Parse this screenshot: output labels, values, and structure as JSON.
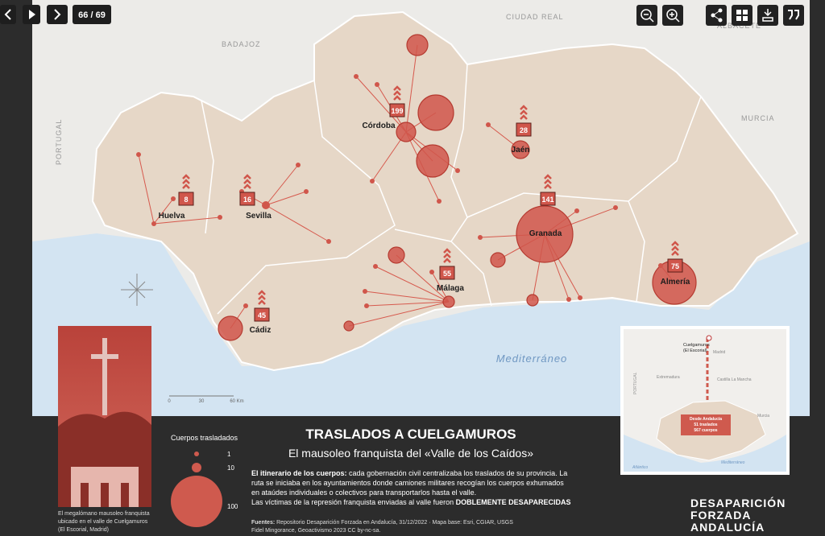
{
  "nav": {
    "counter": "66 / 69"
  },
  "map": {
    "places": [
      "BADAJOZ",
      "CIUDAD REAL",
      "ALBACETE",
      "MURCIA",
      "PORTUGAL"
    ],
    "provinces": [
      {
        "name": "Huelva",
        "count": 8
      },
      {
        "name": "Sevilla",
        "count": 16
      },
      {
        "name": "Córdoba",
        "count": 199
      },
      {
        "name": "Jaén",
        "count": 28
      },
      {
        "name": "Granada",
        "count": 141
      },
      {
        "name": "Almería",
        "count": 75
      },
      {
        "name": "Málaga",
        "count": 55
      },
      {
        "name": "Cádiz",
        "count": 45
      }
    ],
    "sea": "Mediterráneo",
    "scale": [
      "0",
      "30",
      "60 Km"
    ]
  },
  "legend": {
    "title": "Cuerpos trasladados",
    "items": [
      1,
      10,
      100
    ]
  },
  "header": {
    "title": "TRASLADOS A CUELGAMUROS",
    "subtitle": "El mausoleo franquista del «Valle de los Caídos»"
  },
  "body": {
    "lead": "El itinerario de los cuerpos:",
    "lines": [
      "cada gobernación civil centralizaba los traslados de su provincia. La",
      "ruta se iniciaba en los ayuntamientos donde camiones militares recogían los cuerpos exhumados",
      "en ataúdes individuales o colectivos para transportarlos hasta el valle.",
      "Las víctimas de la represión franquista enviadas al valle fueron"
    ],
    "emphasis": "DOBLEMENTE DESAPARECIDAS"
  },
  "sources": {
    "lead": "Fuentes:",
    "lines": [
      "Repositorio Desaparición Forzada en Andalucía, 31/12/2022 · Mapa base: Esri, CGIAR, USGS",
      "Fidel Mingorance, Geoactivismo 2023 CC by-nc-sa."
    ]
  },
  "photo": {
    "caption": [
      "El megalómano mausoleo franquista",
      "ubicado en el valle de Cuelgamuros",
      "(El Escorial, Madrid)"
    ]
  },
  "inset": {
    "origin": [
      "Cuelgamuros",
      "(El Escorial)"
    ],
    "labels": [
      "Madrid",
      "Extremadura",
      "Castilla La Mancha",
      "Murcia",
      "Atlántico",
      "Mediterráneo",
      "PORTUGAL"
    ],
    "box": [
      "Desde Andalucía",
      "51 traslados",
      "567 cuerpos"
    ]
  },
  "logo": [
    "DESAPARICIÓN",
    "FORZADA",
    "ANDALUCÍA"
  ]
}
